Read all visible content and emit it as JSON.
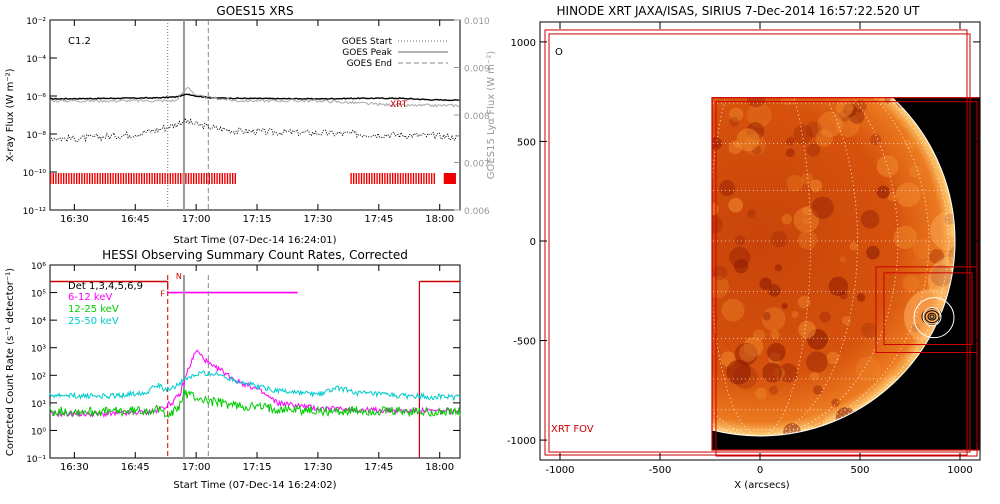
{
  "chart_data": [
    {
      "type": "line",
      "title": "GOES15 XRS",
      "xlabel": "Start Time (07-Dec-14 16:24:01)",
      "ylabel": "X-ray Flux (W m⁻²)",
      "ylabel_right": "GOES15 Lyα Flux (W m⁻²)",
      "x_ticks": [
        "16:30",
        "16:45",
        "17:00",
        "17:15",
        "17:30",
        "17:45",
        "18:00"
      ],
      "y_ticks": [
        "10⁻²",
        "10⁻⁴",
        "10⁻⁶",
        "10⁻⁸",
        "10⁻¹⁰",
        "10⁻¹²"
      ],
      "y_right_ticks": [
        "0.010",
        "0.009",
        "0.008",
        "0.007",
        "0.006"
      ],
      "y_log_range": [
        -12,
        -2
      ],
      "y_right_range": [
        0.006,
        0.01
      ],
      "x_range_min": [
        24,
        125
      ],
      "annotation": "C1.2",
      "xrt_label": "XRT",
      "legend": [
        {
          "label": "GOES Start",
          "style": "dotted"
        },
        {
          "label": "GOES Peak",
          "style": "solid"
        },
        {
          "label": "GOES End",
          "style": "dashed"
        }
      ],
      "series": [
        {
          "name": "GOES long",
          "color": "#000000",
          "x": [
            24,
            30,
            40,
            50,
            55,
            58,
            60,
            64,
            70,
            80,
            90,
            100,
            110,
            118,
            125
          ],
          "y": [
            -6.15,
            -6.14,
            -6.12,
            -6.1,
            -6.05,
            -5.9,
            -6.0,
            -6.1,
            -6.12,
            -6.14,
            -6.15,
            -6.12,
            -6.12,
            -6.2,
            -6.22
          ]
        },
        {
          "name": "GOES short",
          "color": "#000000",
          "x": [
            24,
            30,
            40,
            45,
            50,
            55,
            57,
            60,
            65,
            70,
            80,
            90,
            100,
            110,
            120,
            125
          ],
          "y": [
            -8.2,
            -8.25,
            -8.1,
            -8.0,
            -7.8,
            -7.5,
            -7.3,
            -7.5,
            -7.7,
            -7.85,
            -7.9,
            -7.95,
            -8.0,
            -8.05,
            -8.1,
            -8.2
          ]
        },
        {
          "name": "Lyα",
          "color": "#aaaaaa",
          "x": [
            24,
            40,
            55,
            58,
            60,
            70,
            90,
            110,
            125
          ],
          "y": [
            0.0083,
            0.0083,
            0.0083,
            0.0086,
            0.0084,
            0.0083,
            0.0083,
            0.0082,
            0.0082
          ]
        }
      ],
      "goes_start_min": 53,
      "goes_peak_min": 57,
      "goes_end_min": 63,
      "xrt_intervals": [
        [
          24,
          70
        ],
        [
          98,
          119
        ],
        [
          121,
          124
        ]
      ]
    },
    {
      "type": "line",
      "title": "HESSI Observing Summary Count Rates, Corrected",
      "xlabel": "Start Time (07-Dec-14 16:24:02)",
      "ylabel": "Corrected Count Rate (s⁻¹ detector⁻¹)",
      "x_ticks": [
        "16:30",
        "16:45",
        "17:00",
        "17:15",
        "17:30",
        "17:45",
        "18:00"
      ],
      "y_ticks": [
        "10⁶",
        "10⁵",
        "10⁴",
        "10³",
        "10²",
        "10¹",
        "10⁰",
        "10⁻¹"
      ],
      "y_log_range": [
        -1,
        6
      ],
      "x_range_min": [
        24,
        125
      ],
      "flag_labels": [
        "N",
        "F"
      ],
      "legend": [
        {
          "label": "Det 1,3,4,5,6,9",
          "color": "#000000"
        },
        {
          "label": "6-12 keV",
          "color": "#ff00ff"
        },
        {
          "label": "12-25 keV",
          "color": "#00cc00"
        },
        {
          "label": "25-50 keV",
          "color": "#00cccc"
        }
      ],
      "series": [
        {
          "name": "6-12 keV",
          "color": "#ff00ff",
          "x": [
            24,
            40,
            50,
            54,
            56,
            58,
            60,
            62,
            64,
            66,
            70,
            75,
            80,
            90,
            100,
            110,
            120,
            125
          ],
          "y": [
            0.6,
            0.6,
            0.7,
            1.0,
            1.3,
            2.2,
            2.9,
            2.6,
            2.3,
            2.2,
            1.8,
            1.5,
            1.0,
            0.8,
            0.75,
            0.72,
            0.7,
            0.7
          ]
        },
        {
          "name": "12-25 keV",
          "color": "#00cc00",
          "x": [
            24,
            40,
            50,
            54,
            56,
            57,
            58,
            60,
            62,
            66,
            70,
            80,
            90,
            100,
            110,
            120,
            125
          ],
          "y": [
            0.7,
            0.68,
            0.75,
            0.6,
            0.9,
            1.4,
            1.3,
            1.2,
            1.1,
            1.0,
            0.9,
            0.8,
            0.7,
            0.7,
            0.68,
            0.68,
            0.65
          ]
        },
        {
          "name": "25-50 keV",
          "color": "#00cccc",
          "x": [
            24,
            40,
            48,
            50,
            52,
            54,
            56,
            58,
            60,
            62,
            66,
            70,
            75,
            80,
            90,
            95,
            100,
            110,
            120,
            125
          ],
          "y": [
            1.25,
            1.25,
            1.4,
            1.7,
            1.5,
            1.55,
            1.7,
            1.9,
            2.0,
            2.1,
            2.0,
            1.8,
            1.6,
            1.45,
            1.3,
            1.55,
            1.35,
            1.25,
            1.22,
            1.2
          ]
        }
      ],
      "attenuator": {
        "line_y": 5.4,
        "segments": [
          [
            24,
            53
          ],
          [
            115,
            125
          ]
        ],
        "drop_min": [
          53,
          115
        ]
      },
      "nflag_min": [
        53,
        85
      ],
      "red_dashed_min": 53,
      "grey_solid_min": 57,
      "grey_dashed_min": 63
    },
    {
      "type": "heatmap",
      "title": "HINODE XRT JAXA/ISAS, SIRIUS   7-Dec-2014 16:57:22.520 UT",
      "xlabel": "X (arcsecs)",
      "ylabel": "",
      "x_ticks": [
        "-1000",
        "-500",
        "0",
        "500",
        "1000"
      ],
      "y_ticks": [
        "1000",
        "500",
        "0",
        "-500",
        "-1000"
      ],
      "x_range": [
        -1100,
        1100
      ],
      "y_range": [
        -1100,
        1100
      ],
      "solar_radius_arcsec": 975,
      "image_extent": [
        -240,
        1100,
        -1050,
        720
      ],
      "flare_position": [
        860,
        -380
      ],
      "fov_label": "XRT FOV",
      "marker_label": "O",
      "colors": {
        "disk_bright": "#e55a0a",
        "disk_mid": "#b02c04",
        "disk_dark": "#5a0000",
        "fov": "#cc0000",
        "grid": "#ffffff"
      }
    }
  ]
}
